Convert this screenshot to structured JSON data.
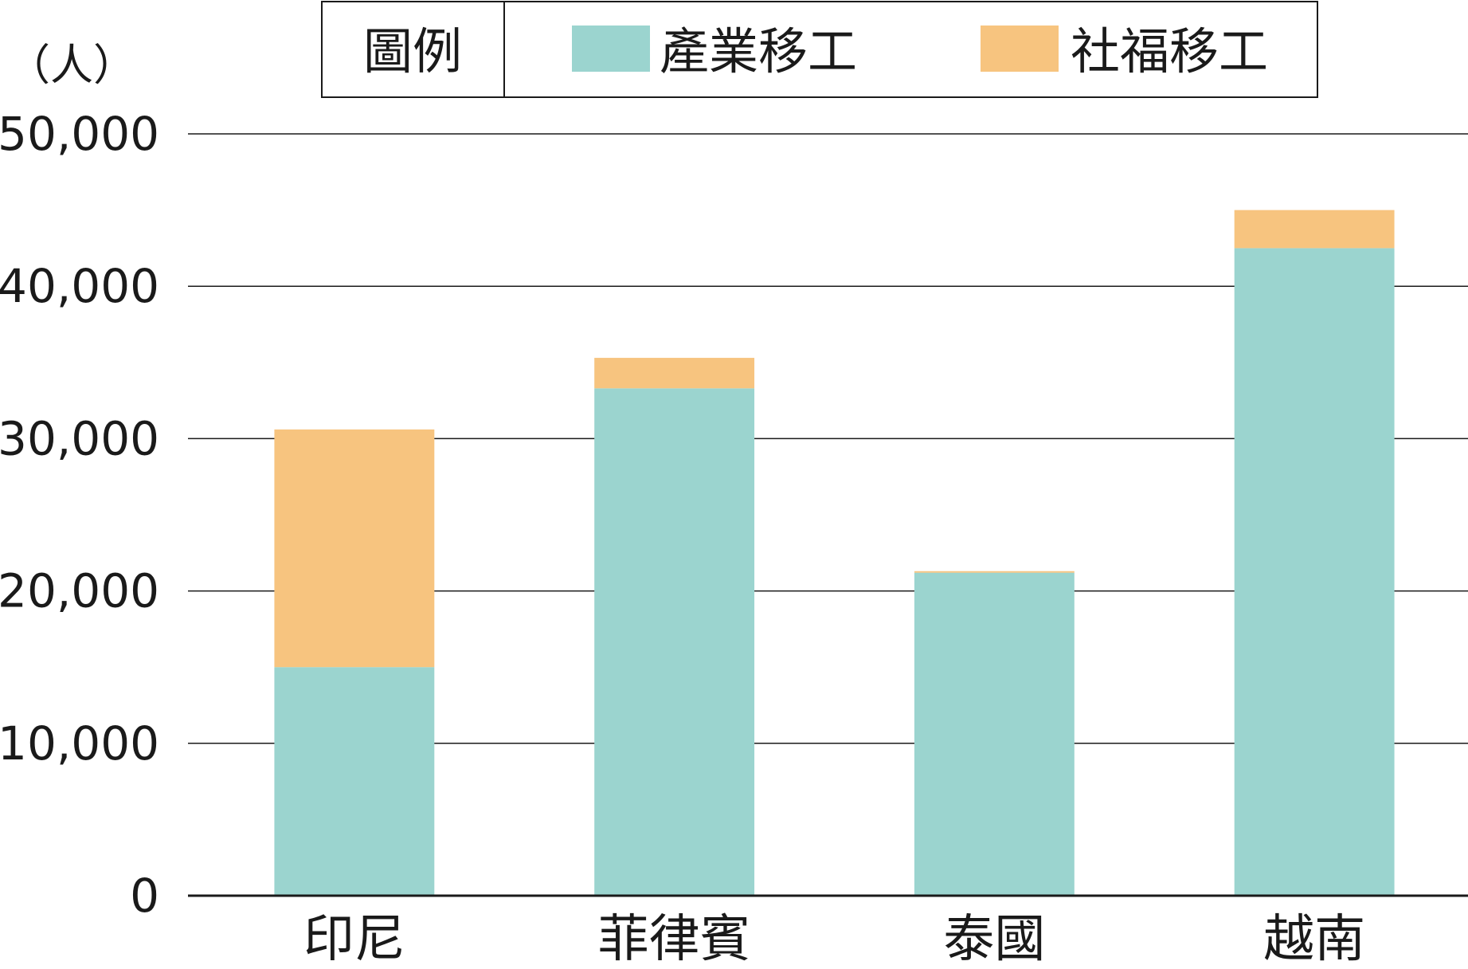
{
  "chart_data": {
    "type": "bar",
    "stacked": true,
    "ylabel": "（人）",
    "ylim": [
      0,
      50000
    ],
    "yticks": [
      0,
      10000,
      20000,
      30000,
      40000,
      50000
    ],
    "ytick_labels": [
      "0",
      "10,000",
      "20,000",
      "30,000",
      "40,000",
      "50,000"
    ],
    "grid": true,
    "categories": [
      "印尼",
      "菲律賓",
      "泰國",
      "越南"
    ],
    "series": [
      {
        "name": "產業移工",
        "color": "#9bd4cf",
        "values": [
          15000,
          33300,
          21200,
          42500
        ]
      },
      {
        "name": "社福移工",
        "color": "#f7c47f",
        "values": [
          15600,
          2000,
          100,
          2500
        ]
      }
    ],
    "legend": {
      "title": "圖例",
      "position": "top"
    }
  }
}
